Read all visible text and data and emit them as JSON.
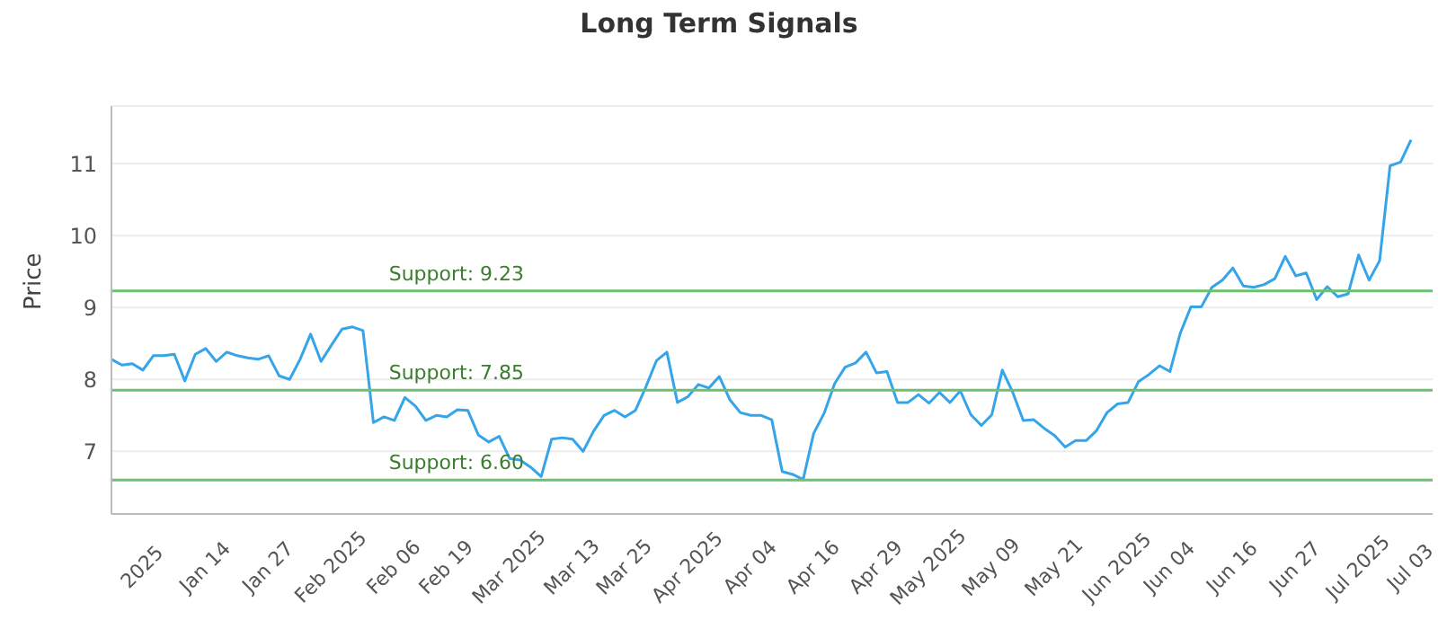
{
  "chart_data": {
    "type": "line",
    "title": "Long Term Signals",
    "ylabel": "Price",
    "categories": [
      null,
      null,
      null,
      "2025",
      null,
      null,
      null,
      null,
      null,
      "Jan 14",
      null,
      null,
      null,
      null,
      null,
      "Jan 27",
      null,
      null,
      null,
      null,
      null,
      "Feb 2025",
      null,
      null,
      null,
      null,
      null,
      "Feb 06",
      null,
      null,
      null,
      null,
      "Feb 19",
      null,
      null,
      null,
      null,
      null,
      "Mar 2025",
      null,
      null,
      null,
      null,
      null,
      "Mar 13",
      null,
      null,
      null,
      null,
      "Mar 25",
      null,
      null,
      null,
      null,
      null,
      "Apr 2025",
      null,
      null,
      null,
      null,
      null,
      "Apr 04",
      null,
      null,
      null,
      null,
      null,
      "Apr 16",
      null,
      null,
      null,
      null,
      null,
      "Apr 29",
      null,
      null,
      null,
      null,
      "May 2025",
      null,
      null,
      null,
      null,
      null,
      "May 09",
      null,
      null,
      null,
      null,
      null,
      "May 21",
      null,
      null,
      null,
      null,
      null,
      "Jun 2025",
      null,
      null,
      null,
      null,
      "Jun 04",
      null,
      null,
      null,
      null,
      null,
      "Jun 16",
      null,
      null,
      null,
      null,
      null,
      "Jun 27",
      null,
      null,
      null,
      null,
      null,
      "Jul 2025",
      null,
      null,
      null,
      null,
      "Jul 03"
    ],
    "series": [
      {
        "color": "#35a4e8",
        "values": [
          8.28,
          8.2,
          8.22,
          8.13,
          8.33,
          8.33,
          8.35,
          7.98,
          8.35,
          8.43,
          8.25,
          8.38,
          8.33,
          8.3,
          8.28,
          8.33,
          8.05,
          8.0,
          8.28,
          8.63,
          8.25,
          8.48,
          8.7,
          8.73,
          8.68,
          7.4,
          7.48,
          7.43,
          7.75,
          7.63,
          7.43,
          7.5,
          7.48,
          7.58,
          7.57,
          7.23,
          7.13,
          7.21,
          6.9,
          6.88,
          6.78,
          6.65,
          7.17,
          7.19,
          7.17,
          7.0,
          7.28,
          7.5,
          7.57,
          7.48,
          7.57,
          7.9,
          8.26,
          8.38,
          7.68,
          7.76,
          7.93,
          7.88,
          8.04,
          7.72,
          7.54,
          7.5,
          7.5,
          7.44,
          6.72,
          6.68,
          6.61,
          7.25,
          7.53,
          7.94,
          8.17,
          8.23,
          8.38,
          8.09,
          8.11,
          7.68,
          7.68,
          7.79,
          7.67,
          7.82,
          7.68,
          7.84,
          7.51,
          7.36,
          7.51,
          8.13,
          7.82,
          7.43,
          7.44,
          7.32,
          7.22,
          7.06,
          7.15,
          7.15,
          7.29,
          7.54,
          7.66,
          7.68,
          7.97,
          8.07,
          8.19,
          8.11,
          8.65,
          9.01,
          9.01,
          9.28,
          9.38,
          9.55,
          9.3,
          9.28,
          9.32,
          9.4,
          9.71,
          9.44,
          9.48,
          9.11,
          9.29,
          9.15,
          9.19,
          9.73,
          9.38,
          9.65,
          10.97,
          11.02,
          11.33
        ]
      }
    ],
    "ylim": [
      6.13,
      11.8
    ],
    "yticks": [
      7,
      8,
      9,
      10,
      11
    ],
    "grid": "y",
    "legend": false,
    "marker": "none",
    "line_style": "solid",
    "ref_lines": [
      {
        "axis": "y",
        "value": 9.23,
        "label": "Support: 9.23",
        "color": "#6cc070"
      },
      {
        "axis": "y",
        "value": 7.85,
        "label": "Support: 7.85",
        "color": "#6cc070"
      },
      {
        "axis": "y",
        "value": 6.6,
        "label": "Support: 6.60",
        "color": "#6cc070"
      }
    ]
  }
}
